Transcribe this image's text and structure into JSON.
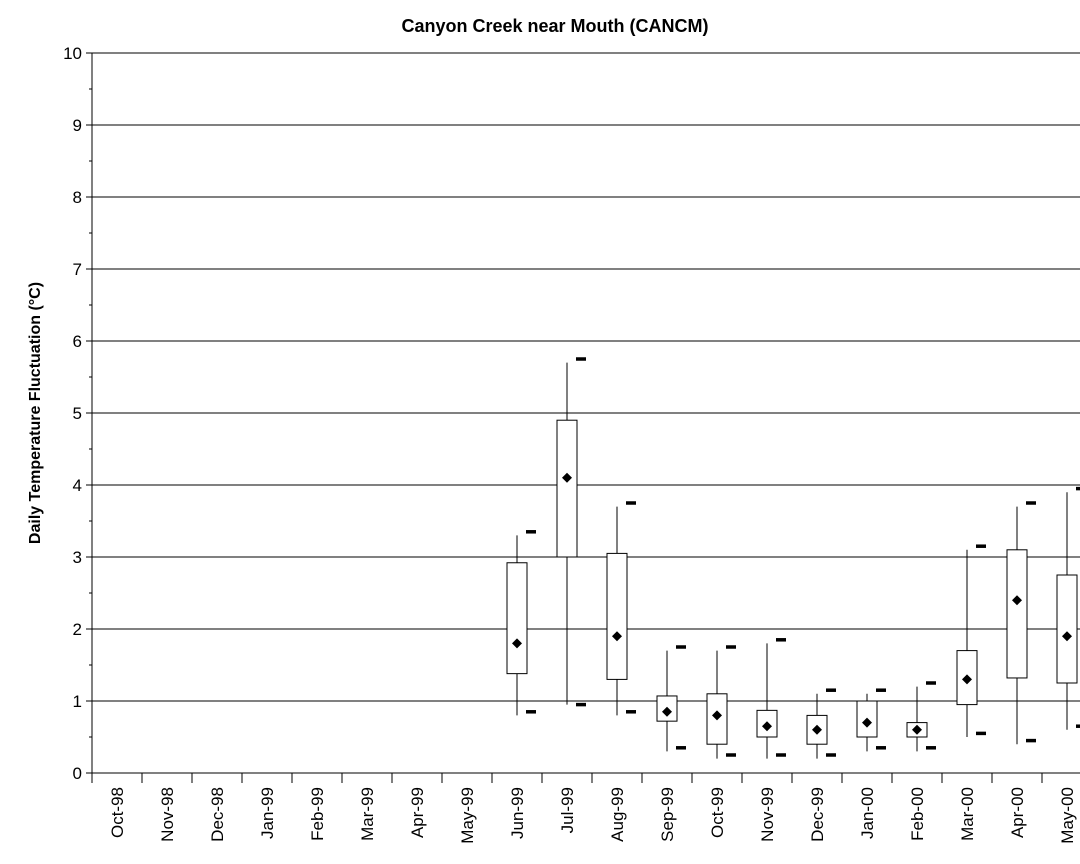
{
  "chart_data": {
    "type": "box",
    "title": "Canyon Creek near Mouth (CANCM)",
    "y_label": "Daily Temperature Fluctuation (°C)",
    "categories": [
      "Oct-98",
      "Nov-98",
      "Dec-98",
      "Jan-99",
      "Feb-99",
      "Mar-99",
      "Apr-99",
      "May-99",
      "Jun-99",
      "Jul-99",
      "Aug-99",
      "Sep-99",
      "Oct-99",
      "Nov-99",
      "Dec-99",
      "Jan-00",
      "Feb-00",
      "Mar-00",
      "Apr-00",
      "May-00"
    ],
    "min": [
      null,
      null,
      null,
      null,
      null,
      null,
      null,
      null,
      0.8,
      0.95,
      0.8,
      0.3,
      0.2,
      0.2,
      0.2,
      0.3,
      0.3,
      0.5,
      0.4,
      0.6
    ],
    "q1": [
      null,
      null,
      null,
      null,
      null,
      null,
      null,
      null,
      1.38,
      3.0,
      1.3,
      0.72,
      0.4,
      0.5,
      0.4,
      0.5,
      0.5,
      0.95,
      1.32,
      1.25
    ],
    "q3": [
      null,
      null,
      null,
      null,
      null,
      null,
      null,
      null,
      2.92,
      4.9,
      3.05,
      1.07,
      1.1,
      0.87,
      0.8,
      1.0,
      0.7,
      1.7,
      3.1,
      2.75
    ],
    "max": [
      null,
      null,
      null,
      null,
      null,
      null,
      null,
      null,
      3.3,
      5.7,
      3.7,
      1.7,
      1.7,
      1.8,
      1.1,
      1.1,
      1.2,
      3.1,
      3.7,
      3.9
    ],
    "mean": [
      null,
      null,
      null,
      null,
      null,
      null,
      null,
      null,
      1.8,
      4.1,
      1.9,
      0.85,
      0.8,
      0.65,
      0.6,
      0.7,
      0.6,
      1.3,
      2.4,
      1.9
    ],
    "low_marker": [
      null,
      null,
      null,
      null,
      null,
      null,
      null,
      null,
      0.85,
      0.95,
      0.85,
      0.35,
      0.25,
      0.25,
      0.25,
      0.35,
      0.35,
      0.55,
      0.45,
      0.65
    ],
    "high_marker": [
      null,
      null,
      null,
      null,
      null,
      null,
      null,
      null,
      3.35,
      5.75,
      3.75,
      1.75,
      1.75,
      1.85,
      1.15,
      1.15,
      1.25,
      3.15,
      3.75,
      3.95
    ],
    "ylim": [
      0,
      10
    ],
    "yticks": [
      0,
      1,
      2,
      3,
      4,
      5,
      6,
      7,
      8,
      9,
      10
    ],
    "grid": true,
    "color": "#000000"
  }
}
